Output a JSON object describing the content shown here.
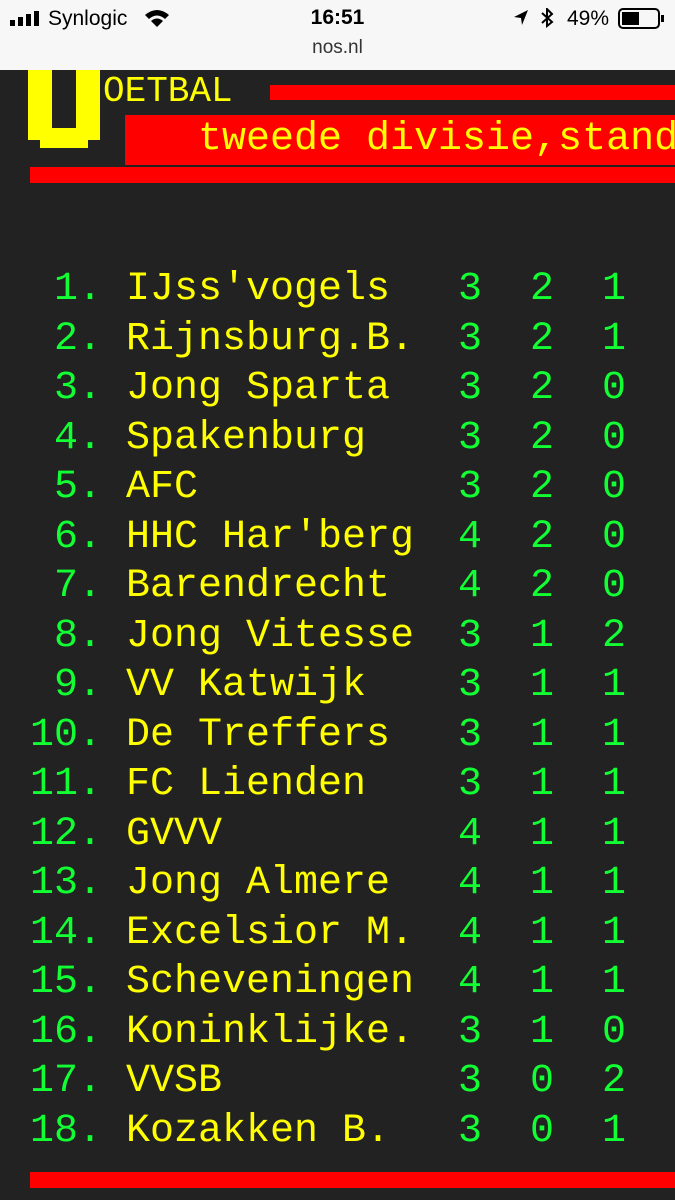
{
  "status_bar": {
    "carrier": "Synlogic",
    "time": "16:51",
    "battery": "49%",
    "url": "nos.nl"
  },
  "header": {
    "title": "OETBAL",
    "subtitle": "tweede divisie,stand"
  },
  "table": {
    "rows": [
      [
        "1.",
        "IJss'vogels",
        "3",
        "2",
        "1"
      ],
      [
        "2.",
        "Rijnsburg.B.",
        "3",
        "2",
        "1"
      ],
      [
        "3.",
        "Jong Sparta",
        "3",
        "2",
        "0"
      ],
      [
        "4.",
        "Spakenburg",
        "3",
        "2",
        "0"
      ],
      [
        "5.",
        "AFC",
        "3",
        "2",
        "0"
      ],
      [
        "6.",
        "HHC Har'berg",
        "4",
        "2",
        "0"
      ],
      [
        "7.",
        "Barendrecht",
        "4",
        "2",
        "0"
      ],
      [
        "8.",
        "Jong Vitesse",
        "3",
        "1",
        "2"
      ],
      [
        "9.",
        "VV Katwijk",
        "3",
        "1",
        "1"
      ],
      [
        "10.",
        "De Treffers",
        "3",
        "1",
        "1"
      ],
      [
        "11.",
        "FC Lienden",
        "3",
        "1",
        "1"
      ],
      [
        "12.",
        "GVVV",
        "4",
        "1",
        "1"
      ],
      [
        "13.",
        "Jong Almere",
        "4",
        "1",
        "1"
      ],
      [
        "14.",
        "Excelsior M.",
        "4",
        "1",
        "1"
      ],
      [
        "15.",
        "Scheveningen",
        "4",
        "1",
        "1"
      ],
      [
        "16.",
        "Koninklijke.",
        "3",
        "1",
        "0"
      ],
      [
        "17.",
        "VVSB",
        "3",
        "0",
        "2"
      ],
      [
        "18.",
        "Kozakken B.",
        "3",
        "0",
        "1"
      ]
    ]
  }
}
